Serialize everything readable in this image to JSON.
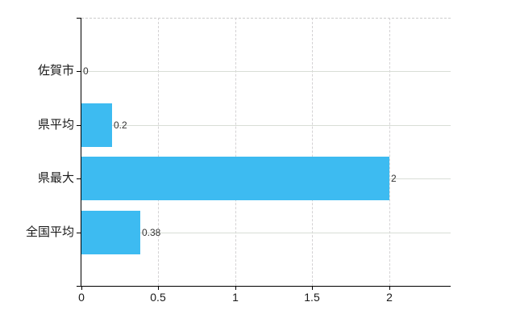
{
  "chart_data": {
    "type": "bar",
    "orientation": "horizontal",
    "title": "",
    "xlabel": "",
    "ylabel": "",
    "categories": [
      "佐賀市",
      "県平均",
      "県最大",
      "全国平均"
    ],
    "values": [
      0,
      0.2,
      2,
      0.38
    ],
    "value_labels": [
      "0",
      "0.2",
      "2",
      "0.38"
    ],
    "xlim": [
      0,
      2.4
    ],
    "xticks": [
      0,
      0.5,
      1,
      1.5,
      2
    ],
    "xtick_labels": [
      "0",
      "0.5",
      "1",
      "1.5",
      "2"
    ],
    "legend_position": "none",
    "grid": true,
    "colors": {
      "bar": "#3dbbf1",
      "axis": "#000000",
      "horizontal_grid": "#d9ded6",
      "vertical_grid": "#d4d2d4",
      "top_border": "#cccccc",
      "category_text": "#1a1a1a",
      "value_text": "#333333",
      "background": "#ffffff"
    }
  }
}
